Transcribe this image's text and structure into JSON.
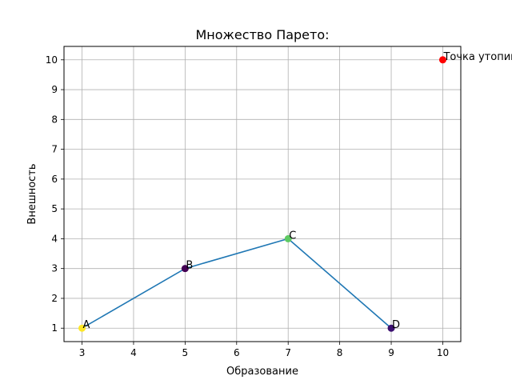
{
  "chart_data": {
    "type": "scatter",
    "title": "Множество Парето:",
    "xlabel": "Образование",
    "ylabel": "Внешность",
    "xlim": [
      2.65,
      10.35
    ],
    "ylim": [
      0.55,
      10.45
    ],
    "xticks": [
      3,
      4,
      5,
      6,
      7,
      8,
      9,
      10
    ],
    "yticks": [
      1,
      2,
      3,
      4,
      5,
      6,
      7,
      8,
      9,
      10
    ],
    "grid": true,
    "points": [
      {
        "label": "A",
        "x": 3,
        "y": 1,
        "color": "#fde725"
      },
      {
        "label": "B",
        "x": 5,
        "y": 3,
        "color": "#440154"
      },
      {
        "label": "C",
        "x": 7,
        "y": 4,
        "color": "#5ec962"
      },
      {
        "label": "D",
        "x": 9,
        "y": 1,
        "color": "#3b0f70"
      },
      {
        "label": "Точка утопии",
        "x": 10,
        "y": 10,
        "color": "#ff0000"
      }
    ],
    "line": {
      "x": [
        3,
        5,
        7,
        9
      ],
      "y": [
        1,
        3,
        4,
        1
      ],
      "color": "#1f77b4"
    }
  }
}
